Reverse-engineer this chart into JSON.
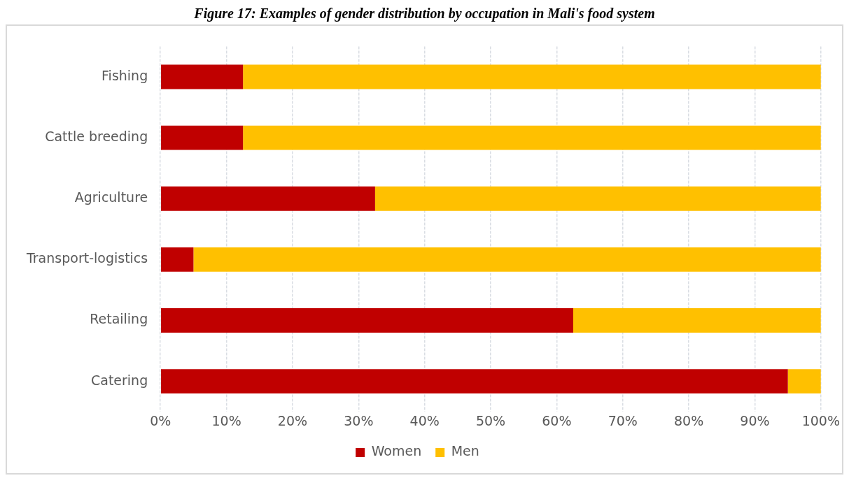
{
  "chart_data": {
    "type": "bar",
    "title": "Figure 17: Examples of gender distribution by occupation in Mali's food system",
    "orientation": "horizontal",
    "stacked": true,
    "categories": [
      "Fishing",
      "Cattle breeding",
      "Agriculture",
      "Transport-logistics",
      "Retailing",
      "Catering"
    ],
    "series": [
      {
        "name": "Women",
        "color": "#c00000",
        "values": [
          12.5,
          12.5,
          32.5,
          5,
          62.5,
          95
        ]
      },
      {
        "name": "Men",
        "color": "#ffc000",
        "values": [
          87.5,
          87.5,
          67.5,
          95,
          37.5,
          5
        ]
      }
    ],
    "xlim": [
      0,
      100
    ],
    "xticks": [
      {
        "value": 0,
        "label": "0%"
      },
      {
        "value": 10,
        "label": "10%"
      },
      {
        "value": 20,
        "label": "20%"
      },
      {
        "value": 30,
        "label": "30%"
      },
      {
        "value": 40,
        "label": "40%"
      },
      {
        "value": 50,
        "label": "50%"
      },
      {
        "value": 60,
        "label": "60%"
      },
      {
        "value": 70,
        "label": "70%"
      },
      {
        "value": 80,
        "label": "80%"
      },
      {
        "value": 90,
        "label": "90%"
      },
      {
        "value": 100,
        "label": "100%"
      }
    ],
    "grid": "x",
    "legend": "bottom"
  }
}
